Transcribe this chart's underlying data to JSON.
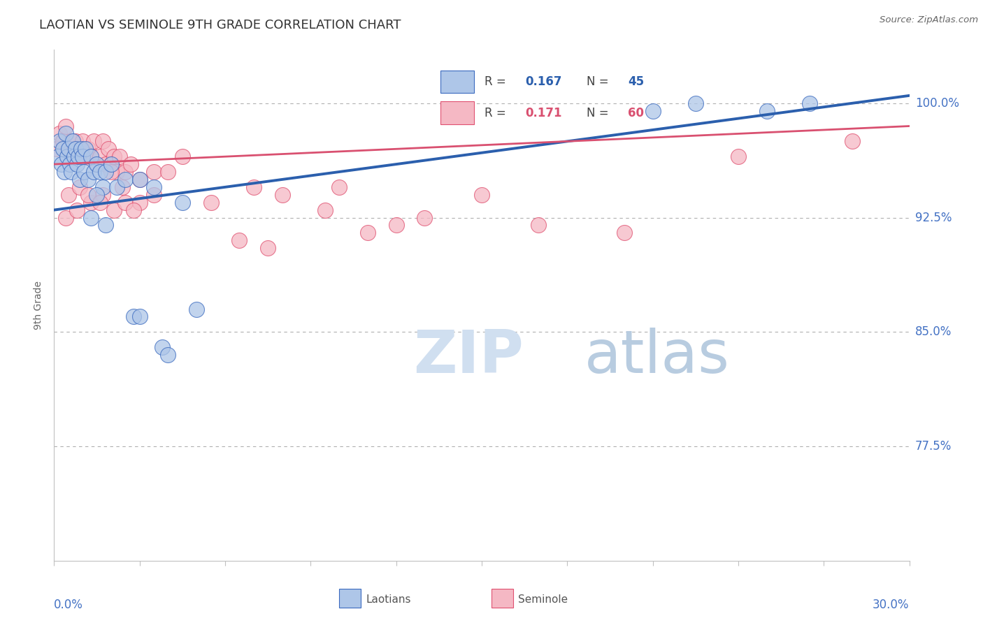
{
  "title": "LAOTIAN VS SEMINOLE 9TH GRADE CORRELATION CHART",
  "source": "Source: ZipAtlas.com",
  "ylabel": "9th Grade",
  "ytick_labels": [
    "77.5%",
    "85.0%",
    "92.5%",
    "100.0%"
  ],
  "ytick_values": [
    77.5,
    85.0,
    92.5,
    100.0
  ],
  "xlim": [
    0.0,
    30.0
  ],
  "ylim": [
    70.0,
    103.5
  ],
  "blue_color": "#aec6e8",
  "pink_color": "#f5b8c4",
  "blue_edge_color": "#3a6abf",
  "pink_edge_color": "#e05070",
  "blue_line_color": "#2b5fad",
  "pink_line_color": "#d95070",
  "title_color": "#333333",
  "axis_label_color": "#4472c4",
  "blue_scatter_x": [
    0.15,
    0.2,
    0.25,
    0.3,
    0.35,
    0.4,
    0.45,
    0.5,
    0.55,
    0.6,
    0.65,
    0.7,
    0.75,
    0.8,
    0.85,
    0.9,
    0.95,
    1.0,
    1.05,
    1.1,
    1.2,
    1.3,
    1.4,
    1.5,
    1.6,
    1.7,
    1.8,
    2.0,
    2.2,
    2.5,
    3.0,
    3.5,
    4.5,
    1.3,
    1.5,
    1.8,
    2.8,
    5.0,
    21.0,
    22.5,
    25.0,
    26.5,
    3.0,
    3.8,
    4.0
  ],
  "blue_scatter_y": [
    96.5,
    97.5,
    96.0,
    97.0,
    95.5,
    98.0,
    96.5,
    97.0,
    96.0,
    95.5,
    97.5,
    96.5,
    97.0,
    96.0,
    96.5,
    95.0,
    97.0,
    96.5,
    95.5,
    97.0,
    95.0,
    96.5,
    95.5,
    96.0,
    95.5,
    94.5,
    95.5,
    96.0,
    94.5,
    95.0,
    95.0,
    94.5,
    93.5,
    92.5,
    94.0,
    92.0,
    86.0,
    86.5,
    99.5,
    100.0,
    99.5,
    100.0,
    86.0,
    84.0,
    83.5
  ],
  "pink_scatter_x": [
    0.1,
    0.2,
    0.3,
    0.4,
    0.5,
    0.6,
    0.7,
    0.75,
    0.8,
    0.9,
    1.0,
    1.1,
    1.2,
    1.3,
    1.4,
    1.5,
    1.6,
    1.7,
    1.8,
    1.9,
    2.0,
    2.1,
    2.2,
    2.3,
    2.5,
    2.7,
    3.0,
    3.5,
    4.0,
    4.5,
    0.5,
    0.9,
    1.3,
    1.7,
    2.1,
    2.5,
    3.0,
    0.4,
    0.8,
    1.2,
    1.6,
    2.0,
    2.4,
    2.8,
    3.5,
    5.5,
    7.0,
    10.0,
    13.0,
    17.0,
    20.0,
    24.0,
    28.0,
    8.0,
    9.5,
    12.0,
    15.0,
    6.5,
    7.5,
    11.0
  ],
  "pink_scatter_y": [
    97.0,
    98.0,
    97.5,
    98.5,
    97.0,
    97.5,
    97.0,
    97.5,
    96.5,
    97.0,
    97.5,
    96.5,
    97.0,
    96.5,
    97.5,
    96.0,
    96.5,
    97.5,
    96.0,
    97.0,
    96.0,
    96.5,
    95.5,
    96.5,
    95.5,
    96.0,
    95.0,
    95.5,
    95.5,
    96.5,
    94.0,
    94.5,
    93.5,
    94.0,
    93.0,
    93.5,
    93.5,
    92.5,
    93.0,
    94.0,
    93.5,
    95.5,
    94.5,
    93.0,
    94.0,
    93.5,
    94.5,
    94.5,
    92.5,
    92.0,
    91.5,
    96.5,
    97.5,
    94.0,
    93.0,
    92.0,
    94.0,
    91.0,
    90.5,
    91.5
  ],
  "blue_trend_x": [
    0.0,
    30.0
  ],
  "blue_trend_y": [
    93.0,
    100.5
  ],
  "pink_trend_x": [
    0.0,
    30.0
  ],
  "pink_trend_y": [
    96.0,
    98.5
  ],
  "legend_r_blue": "0.167",
  "legend_n_blue": "45",
  "legend_r_pink": "0.171",
  "legend_n_pink": "60"
}
